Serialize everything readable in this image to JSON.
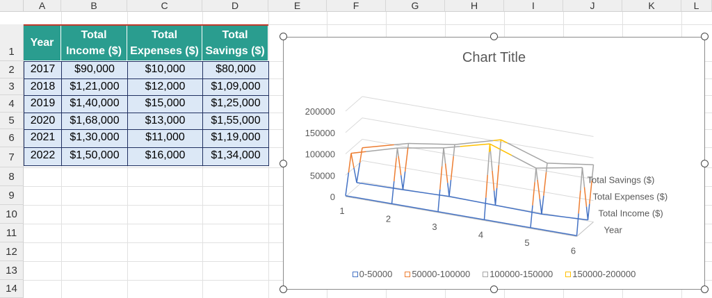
{
  "sheet": {
    "columns": [
      "A",
      "B",
      "C",
      "D",
      "E",
      "F",
      "G",
      "H",
      "I",
      "J",
      "K",
      "L"
    ],
    "rows": [
      "1",
      "2",
      "3",
      "4",
      "5",
      "6",
      "7",
      "8",
      "9",
      "10",
      "11",
      "12",
      "13",
      "14"
    ]
  },
  "table": {
    "headers": [
      "Year",
      "Total Income ($)",
      "Total Expenses ($)",
      "Total Savings ($)"
    ],
    "rows": [
      [
        "2017",
        "$90,000",
        "$10,000",
        "$80,000"
      ],
      [
        "2018",
        "$1,21,000",
        "$12,000",
        "$1,09,000"
      ],
      [
        "2019",
        "$1,40,000",
        "$15,000",
        "$1,25,000"
      ],
      [
        "2020",
        "$1,68,000",
        "$13,000",
        "$1,55,000"
      ],
      [
        "2021",
        "$1,30,000",
        "$11,000",
        "$1,19,000"
      ],
      [
        "2022",
        "$1,50,000",
        "$16,000",
        "$1,34,000"
      ]
    ]
  },
  "chart": {
    "title": "Chart Title",
    "y_ticks": [
      "200000",
      "150000",
      "100000",
      "50000",
      "0"
    ],
    "x_ticks": [
      "1",
      "2",
      "3",
      "4",
      "5",
      "6"
    ],
    "depth_labels": [
      "Total Savings ($)",
      "Total Expenses ($)",
      "Total Income ($)",
      "Year"
    ],
    "legend": [
      {
        "label": "0-50000",
        "color": "#4472c4"
      },
      {
        "label": "50000-100000",
        "color": "#ed7d31"
      },
      {
        "label": "100000-150000",
        "color": "#a5a5a5"
      },
      {
        "label": "150000-200000",
        "color": "#ffc000"
      }
    ]
  },
  "chart_data": {
    "type": "surface",
    "title": "Chart Title",
    "categories": [
      "1",
      "2",
      "3",
      "4",
      "5",
      "6"
    ],
    "series": [
      {
        "name": "Year",
        "values": [
          2017,
          2018,
          2019,
          2020,
          2021,
          2022
        ]
      },
      {
        "name": "Total Income ($)",
        "values": [
          90000,
          121000,
          140000,
          168000,
          130000,
          150000
        ]
      },
      {
        "name": "Total Expenses ($)",
        "values": [
          10000,
          12000,
          15000,
          13000,
          11000,
          16000
        ]
      },
      {
        "name": "Total Savings ($)",
        "values": [
          80000,
          109000,
          125000,
          155000,
          119000,
          134000
        ]
      }
    ],
    "ylim": [
      0,
      200000
    ],
    "legend_position": "bottom"
  }
}
